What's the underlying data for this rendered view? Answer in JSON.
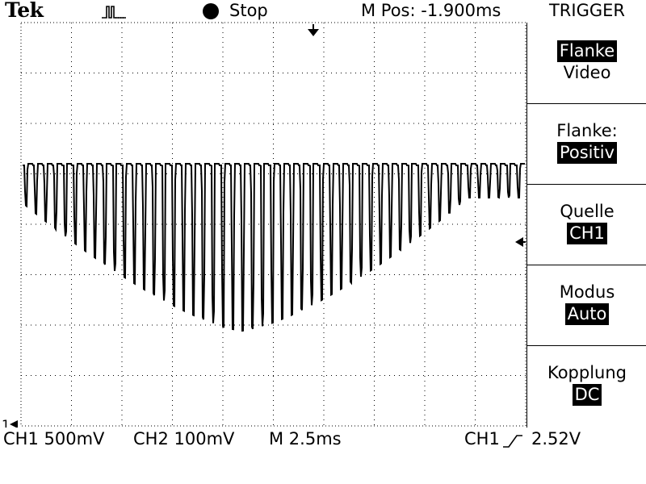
{
  "header": {
    "brand": "Tek",
    "acq_icon": "pulse-waveform-icon",
    "run_state": "Stop",
    "m_pos": "M Pos: -1.900ms",
    "menu_title": "TRIGGER"
  },
  "menu": {
    "type_selected": "Flanke",
    "type_other": "Video",
    "slope_label": "Flanke:",
    "slope_value": "Positiv",
    "source_label": "Quelle",
    "source_value": "CH1",
    "mode_label": "Modus",
    "mode_value": "Auto",
    "coupling_label": "Kopplung",
    "coupling_value": "DC"
  },
  "status": {
    "ch1_scale": "CH1 500mV",
    "ch2_scale": "CH2 100mV",
    "time_scale": "M 2.5ms",
    "trigger_source": "CH1",
    "trigger_slope_icon": "rising-edge-icon",
    "trigger_level": "2.52V"
  },
  "markers": {
    "channel_ground": "1",
    "trigger_position_icon": "trigger-position-arrow-icon",
    "trigger_level_icon": "trigger-level-arrow-icon"
  }
}
